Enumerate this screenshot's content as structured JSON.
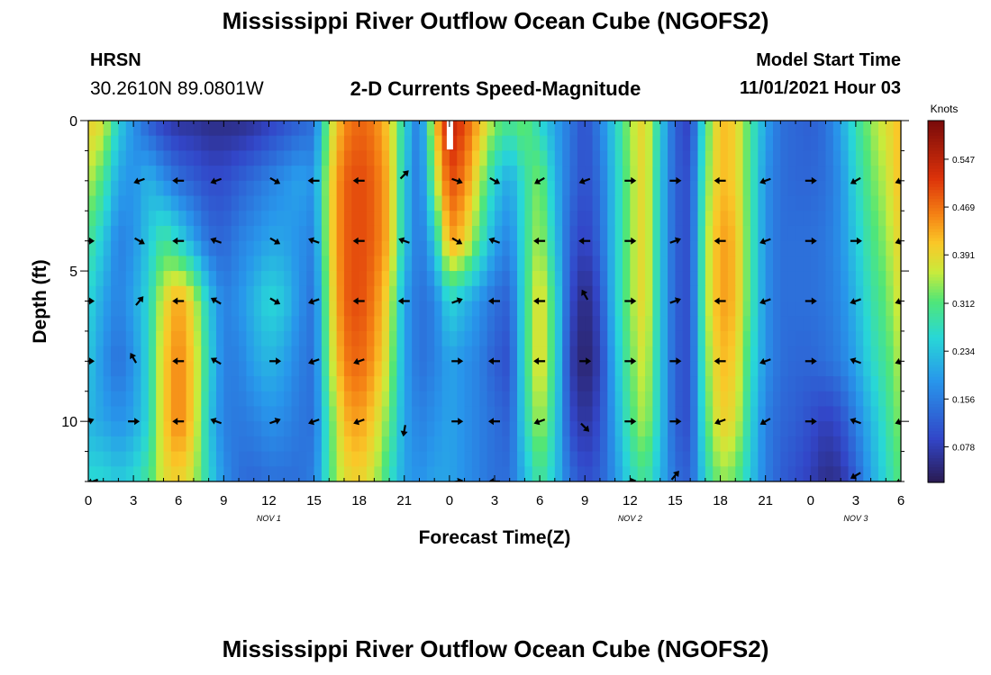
{
  "header": {
    "title": "Mississippi River Outflow Ocean Cube (NGOFS2)",
    "station": "HRSN",
    "coords": "30.2610N  89.0801W",
    "subtitle": "2-D Currents Speed-Magnitude",
    "model_label": "Model Start Time",
    "model_time": "11/01/2021 Hour 03",
    "title_repeat": "Mississippi River Outflow Ocean Cube (NGOFS2)"
  },
  "chart_data": {
    "type": "heatmap",
    "xlabel": "Forecast Time(Z)",
    "ylabel": "Depth (ft)",
    "x_range": [
      0,
      54
    ],
    "y_range": [
      0,
      12
    ],
    "x_ticks": [
      {
        "v": 0,
        "label": "0"
      },
      {
        "v": 3,
        "label": "3"
      },
      {
        "v": 6,
        "label": "6"
      },
      {
        "v": 9,
        "label": "9"
      },
      {
        "v": 12,
        "label": "12"
      },
      {
        "v": 15,
        "label": "15"
      },
      {
        "v": 18,
        "label": "18"
      },
      {
        "v": 21,
        "label": "21"
      },
      {
        "v": 24,
        "label": "0"
      },
      {
        "v": 27,
        "label": "3"
      },
      {
        "v": 30,
        "label": "6"
      },
      {
        "v": 33,
        "label": "9"
      },
      {
        "v": 36,
        "label": "12"
      },
      {
        "v": 39,
        "label": "15"
      },
      {
        "v": 42,
        "label": "18"
      },
      {
        "v": 45,
        "label": "21"
      },
      {
        "v": 48,
        "label": "0"
      },
      {
        "v": 51,
        "label": "3"
      },
      {
        "v": 54,
        "label": "6"
      }
    ],
    "y_ticks": [
      {
        "v": 0,
        "label": "0"
      },
      {
        "v": 5,
        "label": "5"
      },
      {
        "v": 10,
        "label": "10"
      }
    ],
    "day_labels": [
      {
        "v": 12,
        "label": "NOV 1"
      },
      {
        "v": 36,
        "label": "NOV 2"
      },
      {
        "v": 51,
        "label": "NOV 3"
      }
    ],
    "colorbar": {
      "label": "Knots",
      "min": 0.02,
      "max": 0.61,
      "ticks": [
        0.547,
        0.469,
        0.391,
        0.312,
        0.234,
        0.156,
        0.078
      ],
      "tick_labels": [
        "0.547",
        "0.469",
        "0.391",
        "0.312",
        "0.234",
        "0.156",
        "0.078"
      ]
    },
    "hours": [
      0,
      1,
      2,
      3,
      4,
      5,
      6,
      7,
      8,
      9,
      10,
      11,
      12,
      13,
      14,
      15,
      16,
      17,
      18,
      19,
      20,
      21,
      22,
      23,
      24,
      25,
      26,
      27,
      28,
      29,
      30,
      31,
      32,
      33,
      34,
      35,
      36,
      37,
      38,
      39,
      40,
      41,
      42,
      43,
      44,
      45,
      46,
      47,
      48,
      49,
      50,
      51,
      52,
      53,
      54
    ],
    "depths": [
      0,
      2,
      4,
      6,
      8,
      10,
      12
    ],
    "speeds": [
      [
        0.4,
        0.38,
        0.25,
        0.18,
        0.12,
        0.08,
        0.06,
        0.06,
        0.05,
        0.05,
        0.05,
        0.06,
        0.08,
        0.1,
        0.12,
        0.14,
        0.35,
        0.45,
        0.48,
        0.46,
        0.4,
        0.26,
        0.14,
        0.4,
        0.55,
        0.5,
        0.42,
        0.34,
        0.3,
        0.33,
        0.26,
        0.2,
        0.15,
        0.1,
        0.16,
        0.25,
        0.35,
        0.4,
        0.25,
        0.12,
        0.08,
        0.3,
        0.42,
        0.4,
        0.3,
        0.2,
        0.14,
        0.13,
        0.12,
        0.14,
        0.2,
        0.28,
        0.34,
        0.38,
        0.42
      ],
      [
        0.36,
        0.3,
        0.2,
        0.18,
        0.22,
        0.18,
        0.14,
        0.12,
        0.1,
        0.1,
        0.12,
        0.14,
        0.16,
        0.18,
        0.2,
        0.18,
        0.38,
        0.48,
        0.5,
        0.48,
        0.42,
        0.24,
        0.14,
        0.34,
        0.5,
        0.46,
        0.36,
        0.25,
        0.2,
        0.28,
        0.34,
        0.22,
        0.14,
        0.1,
        0.14,
        0.24,
        0.34,
        0.4,
        0.24,
        0.12,
        0.1,
        0.32,
        0.42,
        0.4,
        0.3,
        0.18,
        0.14,
        0.13,
        0.13,
        0.14,
        0.18,
        0.26,
        0.32,
        0.36,
        0.42
      ],
      [
        0.3,
        0.24,
        0.16,
        0.18,
        0.24,
        0.3,
        0.26,
        0.2,
        0.14,
        0.13,
        0.16,
        0.18,
        0.2,
        0.2,
        0.18,
        0.16,
        0.38,
        0.48,
        0.5,
        0.48,
        0.42,
        0.24,
        0.14,
        0.24,
        0.44,
        0.4,
        0.3,
        0.2,
        0.16,
        0.28,
        0.36,
        0.24,
        0.12,
        0.08,
        0.13,
        0.24,
        0.34,
        0.4,
        0.24,
        0.12,
        0.1,
        0.34,
        0.44,
        0.42,
        0.3,
        0.18,
        0.14,
        0.14,
        0.14,
        0.15,
        0.18,
        0.24,
        0.3,
        0.34,
        0.4
      ],
      [
        0.26,
        0.2,
        0.16,
        0.2,
        0.26,
        0.38,
        0.44,
        0.38,
        0.24,
        0.16,
        0.18,
        0.22,
        0.26,
        0.24,
        0.18,
        0.14,
        0.36,
        0.48,
        0.5,
        0.46,
        0.38,
        0.2,
        0.14,
        0.16,
        0.26,
        0.22,
        0.18,
        0.14,
        0.12,
        0.28,
        0.4,
        0.28,
        0.1,
        0.04,
        0.1,
        0.24,
        0.34,
        0.4,
        0.24,
        0.12,
        0.1,
        0.34,
        0.44,
        0.42,
        0.3,
        0.18,
        0.14,
        0.14,
        0.14,
        0.15,
        0.17,
        0.22,
        0.28,
        0.32,
        0.38
      ],
      [
        0.24,
        0.18,
        0.14,
        0.18,
        0.26,
        0.4,
        0.46,
        0.4,
        0.26,
        0.16,
        0.16,
        0.2,
        0.22,
        0.2,
        0.16,
        0.14,
        0.34,
        0.46,
        0.48,
        0.44,
        0.36,
        0.2,
        0.14,
        0.16,
        0.2,
        0.18,
        0.16,
        0.12,
        0.1,
        0.28,
        0.4,
        0.28,
        0.08,
        0.03,
        0.08,
        0.22,
        0.32,
        0.38,
        0.24,
        0.12,
        0.1,
        0.32,
        0.42,
        0.4,
        0.28,
        0.18,
        0.14,
        0.13,
        0.13,
        0.14,
        0.16,
        0.2,
        0.26,
        0.3,
        0.36
      ],
      [
        0.22,
        0.2,
        0.18,
        0.2,
        0.26,
        0.4,
        0.46,
        0.4,
        0.24,
        0.16,
        0.15,
        0.16,
        0.18,
        0.17,
        0.15,
        0.14,
        0.3,
        0.42,
        0.44,
        0.4,
        0.32,
        0.2,
        0.16,
        0.18,
        0.2,
        0.18,
        0.16,
        0.14,
        0.12,
        0.26,
        0.36,
        0.26,
        0.1,
        0.06,
        0.1,
        0.2,
        0.3,
        0.36,
        0.24,
        0.12,
        0.1,
        0.3,
        0.4,
        0.38,
        0.26,
        0.16,
        0.13,
        0.12,
        0.1,
        0.08,
        0.1,
        0.16,
        0.22,
        0.28,
        0.34
      ],
      [
        0.26,
        0.26,
        0.24,
        0.26,
        0.3,
        0.38,
        0.4,
        0.36,
        0.26,
        0.18,
        0.14,
        0.13,
        0.14,
        0.14,
        0.14,
        0.16,
        0.3,
        0.38,
        0.4,
        0.36,
        0.28,
        0.2,
        0.18,
        0.2,
        0.2,
        0.18,
        0.16,
        0.14,
        0.14,
        0.22,
        0.3,
        0.24,
        0.14,
        0.1,
        0.12,
        0.18,
        0.26,
        0.3,
        0.22,
        0.14,
        0.12,
        0.26,
        0.34,
        0.32,
        0.24,
        0.16,
        0.12,
        0.1,
        0.08,
        0.05,
        0.06,
        0.12,
        0.2,
        0.26,
        0.32
      ]
    ],
    "arrows": [
      {
        "h": 0.3,
        "d": 12,
        "a": 200
      },
      {
        "h": 6,
        "d": 2,
        "a": 180
      },
      {
        "h": 3.4,
        "d": 2,
        "a": 200
      },
      {
        "h": 8.5,
        "d": 2,
        "a": 200
      },
      {
        "h": 12.4,
        "d": 2,
        "a": 330
      },
      {
        "h": 15,
        "d": 2,
        "a": 180
      },
      {
        "h": 18,
        "d": 2,
        "a": 180
      },
      {
        "h": 21,
        "d": 1.8,
        "a": 45
      },
      {
        "h": 24.5,
        "d": 2,
        "a": 340
      },
      {
        "h": 27,
        "d": 2,
        "a": 330
      },
      {
        "h": 30,
        "d": 2,
        "a": 210
      },
      {
        "h": 33,
        "d": 2,
        "a": 200
      },
      {
        "h": 36,
        "d": 2,
        "a": 0
      },
      {
        "h": 39,
        "d": 2,
        "a": 0
      },
      {
        "h": 42,
        "d": 2,
        "a": 180
      },
      {
        "h": 45,
        "d": 2,
        "a": 200
      },
      {
        "h": 48,
        "d": 2,
        "a": 0
      },
      {
        "h": 51,
        "d": 2,
        "a": 210
      },
      {
        "h": 54,
        "d": 2,
        "a": 200
      },
      {
        "h": 0,
        "d": 4,
        "a": 0
      },
      {
        "h": 3.4,
        "d": 4,
        "a": 330
      },
      {
        "h": 6,
        "d": 4,
        "a": 180
      },
      {
        "h": 8.5,
        "d": 4,
        "a": 160
      },
      {
        "h": 12.4,
        "d": 4,
        "a": 330
      },
      {
        "h": 15,
        "d": 4,
        "a": 160
      },
      {
        "h": 18,
        "d": 4,
        "a": 180
      },
      {
        "h": 21,
        "d": 4,
        "a": 160
      },
      {
        "h": 24.5,
        "d": 4,
        "a": 330
      },
      {
        "h": 27,
        "d": 4,
        "a": 160
      },
      {
        "h": 30,
        "d": 4,
        "a": 180
      },
      {
        "h": 33,
        "d": 4,
        "a": 180
      },
      {
        "h": 36,
        "d": 4,
        "a": 0
      },
      {
        "h": 39,
        "d": 4,
        "a": 20
      },
      {
        "h": 42,
        "d": 4,
        "a": 180
      },
      {
        "h": 45,
        "d": 4,
        "a": 200
      },
      {
        "h": 48,
        "d": 4,
        "a": 0
      },
      {
        "h": 51,
        "d": 4,
        "a": 0
      },
      {
        "h": 54,
        "d": 4,
        "a": 200
      },
      {
        "h": 0,
        "d": 6,
        "a": 0
      },
      {
        "h": 3.4,
        "d": 6,
        "a": 50
      },
      {
        "h": 6,
        "d": 6,
        "a": 180
      },
      {
        "h": 8.5,
        "d": 6,
        "a": 150
      },
      {
        "h": 12.4,
        "d": 6,
        "a": 330
      },
      {
        "h": 15,
        "d": 6,
        "a": 200
      },
      {
        "h": 18,
        "d": 6,
        "a": 180
      },
      {
        "h": 21,
        "d": 6,
        "a": 180
      },
      {
        "h": 24.5,
        "d": 6,
        "a": 20
      },
      {
        "h": 27,
        "d": 6,
        "a": 180
      },
      {
        "h": 30,
        "d": 6,
        "a": 180
      },
      {
        "h": 33,
        "d": 5.8,
        "a": 120
      },
      {
        "h": 36,
        "d": 6,
        "a": 0
      },
      {
        "h": 39,
        "d": 6,
        "a": 20
      },
      {
        "h": 42,
        "d": 6,
        "a": 180
      },
      {
        "h": 45,
        "d": 6,
        "a": 200
      },
      {
        "h": 48,
        "d": 6,
        "a": 0
      },
      {
        "h": 51,
        "d": 6,
        "a": 200
      },
      {
        "h": 54,
        "d": 6,
        "a": 200
      },
      {
        "h": 0,
        "d": 8,
        "a": 0
      },
      {
        "h": 3,
        "d": 7.9,
        "a": 120
      },
      {
        "h": 6,
        "d": 8,
        "a": 180
      },
      {
        "h": 8.5,
        "d": 8,
        "a": 150
      },
      {
        "h": 12.4,
        "d": 8,
        "a": 0
      },
      {
        "h": 15,
        "d": 8,
        "a": 200
      },
      {
        "h": 18,
        "d": 8,
        "a": 200
      },
      {
        "h": 24.5,
        "d": 8,
        "a": 0
      },
      {
        "h": 27,
        "d": 8,
        "a": 180
      },
      {
        "h": 30,
        "d": 8,
        "a": 180
      },
      {
        "h": 33,
        "d": 8,
        "a": 0
      },
      {
        "h": 36,
        "d": 8,
        "a": 0
      },
      {
        "h": 39,
        "d": 8,
        "a": 0
      },
      {
        "h": 42,
        "d": 8,
        "a": 180
      },
      {
        "h": 45,
        "d": 8,
        "a": 200
      },
      {
        "h": 48,
        "d": 8,
        "a": 0
      },
      {
        "h": 51,
        "d": 8,
        "a": 160
      },
      {
        "h": 54,
        "d": 8,
        "a": 200
      },
      {
        "h": 0,
        "d": 10,
        "a": 20
      },
      {
        "h": 3,
        "d": 10,
        "a": 0
      },
      {
        "h": 6,
        "d": 10,
        "a": 180
      },
      {
        "h": 8.5,
        "d": 10,
        "a": 160
      },
      {
        "h": 12.4,
        "d": 10,
        "a": 20
      },
      {
        "h": 15,
        "d": 10,
        "a": 200
      },
      {
        "h": 18,
        "d": 10,
        "a": 200
      },
      {
        "h": 21,
        "d": 10.3,
        "a": 260
      },
      {
        "h": 24.5,
        "d": 10,
        "a": 0
      },
      {
        "h": 27,
        "d": 10,
        "a": 180
      },
      {
        "h": 30,
        "d": 10,
        "a": 200
      },
      {
        "h": 33,
        "d": 10.2,
        "a": 315
      },
      {
        "h": 36,
        "d": 10,
        "a": 0
      },
      {
        "h": 39,
        "d": 10,
        "a": 0
      },
      {
        "h": 42,
        "d": 10,
        "a": 200
      },
      {
        "h": 45,
        "d": 10,
        "a": 210
      },
      {
        "h": 48,
        "d": 10,
        "a": 0
      },
      {
        "h": 51,
        "d": 10,
        "a": 160
      },
      {
        "h": 54,
        "d": 10,
        "a": 200
      },
      {
        "h": 24.5,
        "d": 12,
        "a": 10
      },
      {
        "h": 27,
        "d": 12,
        "a": 180
      },
      {
        "h": 36,
        "d": 12,
        "a": 10
      },
      {
        "h": 39,
        "d": 11.8,
        "a": 50
      },
      {
        "h": 51,
        "d": 11.8,
        "a": 210
      },
      {
        "h": 54,
        "d": 12,
        "a": 200
      }
    ],
    "marker": {
      "h": 24,
      "d": 0.6
    }
  }
}
